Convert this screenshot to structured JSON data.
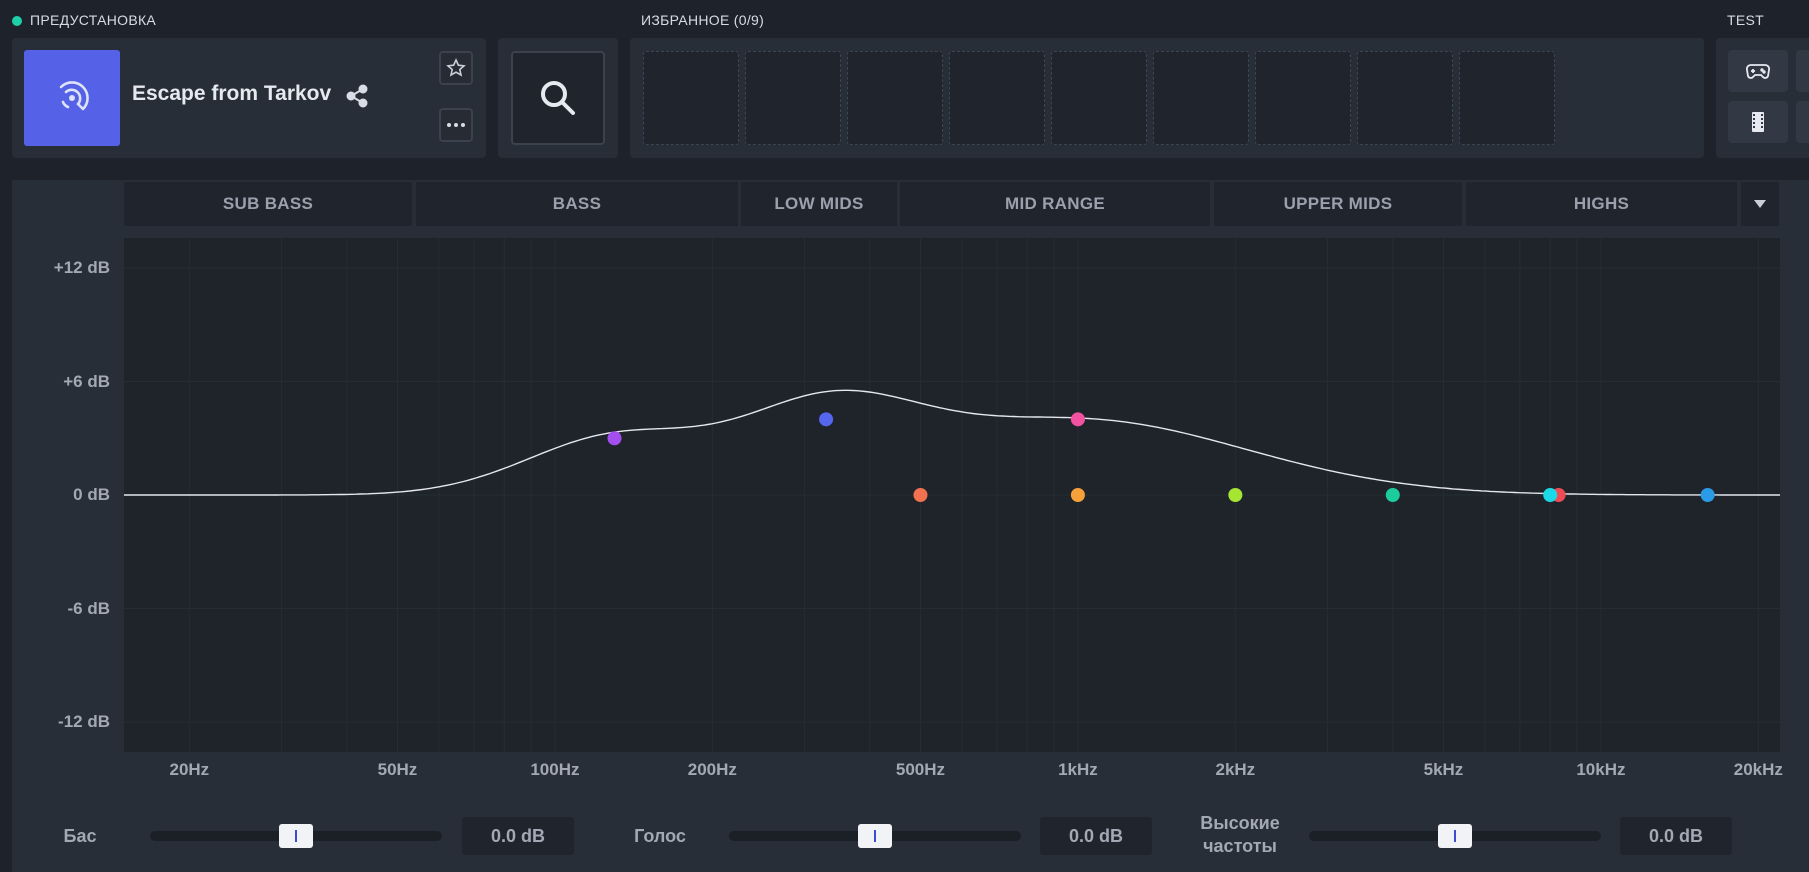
{
  "preset": {
    "section_label": "ПРЕДУСТАНОВКА",
    "title": "Escape from Tarkov",
    "icon": "audio-wave-icon"
  },
  "favorites": {
    "section_label": "ИЗБРАННОЕ (0/9)",
    "slot_count": 9
  },
  "test": {
    "section_label": "TEST",
    "buttons": [
      "gamepad-icon",
      "film-icon"
    ]
  },
  "bands": [
    {
      "label": "SUB BASS"
    },
    {
      "label": "BASS"
    },
    {
      "label": "LOW MIDS"
    },
    {
      "label": "MID RANGE"
    },
    {
      "label": "UPPER MIDS"
    },
    {
      "label": "HIGHS"
    }
  ],
  "db_labels": [
    "+12 dB",
    "+6 dB",
    "0 dB",
    "-6 dB",
    "-12 dB"
  ],
  "freq_labels": [
    "20Hz",
    "50Hz",
    "100Hz",
    "200Hz",
    "500Hz",
    "1kHz",
    "2kHz",
    "5kHz",
    "10kHz",
    "20kHz"
  ],
  "eq_points": [
    {
      "freq_hz": 130,
      "gain_db": 3.0,
      "color": "#a54ef0"
    },
    {
      "freq_hz": 330,
      "gain_db": 4.0,
      "color": "#5567ee"
    },
    {
      "freq_hz": 500,
      "gain_db": 0.0,
      "color": "#f2714f"
    },
    {
      "freq_hz": 1000,
      "gain_db": 4.0,
      "color": "#f2529f"
    },
    {
      "freq_hz": 1000,
      "gain_db": 0.0,
      "color": "#f6a03a"
    },
    {
      "freq_hz": 2000,
      "gain_db": 0.0,
      "color": "#a6e632"
    },
    {
      "freq_hz": 4000,
      "gain_db": 0.0,
      "color": "#1dcc9c"
    },
    {
      "freq_hz": 8300,
      "gain_db": 0.0,
      "color": "#f04b52"
    },
    {
      "freq_hz": 8000,
      "gain_db": 0.0,
      "color": "#1cd9e8"
    },
    {
      "freq_hz": 16000,
      "gain_db": 0.0,
      "color": "#2b9be8"
    }
  ],
  "controls": [
    {
      "label": "Бас",
      "value": "0.0 dB",
      "level": 0.5
    },
    {
      "label": "Голос",
      "value": "0.0 dB",
      "level": 0.5
    },
    {
      "label": "Высокие частоты",
      "value": "0.0 dB",
      "level": 0.5
    }
  ]
}
